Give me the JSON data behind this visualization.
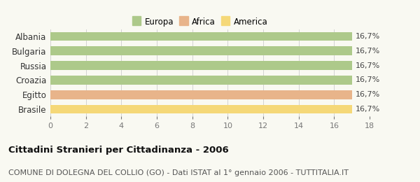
{
  "categories": [
    "Albania",
    "Bulgaria",
    "Russia",
    "Croazia",
    "Egitto",
    "Brasile"
  ],
  "bar_colors": [
    "#adc98a",
    "#adc98a",
    "#adc98a",
    "#adc98a",
    "#e8b48a",
    "#f5d878"
  ],
  "label_text": [
    "16,7%",
    "16,7%",
    "16,7%",
    "16,7%",
    "16,7%",
    "16,7%"
  ],
  "legend_labels": [
    "Europa",
    "Africa",
    "America"
  ],
  "legend_colors": [
    "#adc98a",
    "#e8b48a",
    "#f5d878"
  ],
  "xlim": [
    0,
    18
  ],
  "xticks": [
    0,
    2,
    4,
    6,
    8,
    10,
    12,
    14,
    16,
    18
  ],
  "bar_value": 17,
  "title": "Cittadini Stranieri per Cittadinanza - 2006",
  "subtitle": "COMUNE DI DOLEGNA DEL COLLIO (GO) - Dati ISTAT al 1° gennaio 2006 - TUTTITALIA.IT",
  "background_color": "#f9f9f2",
  "title_fontsize": 9.5,
  "subtitle_fontsize": 8,
  "tick_fontsize": 8,
  "bar_label_fontsize": 8,
  "yticklabel_fontsize": 8.5,
  "legend_fontsize": 8.5,
  "bar_height": 0.62
}
